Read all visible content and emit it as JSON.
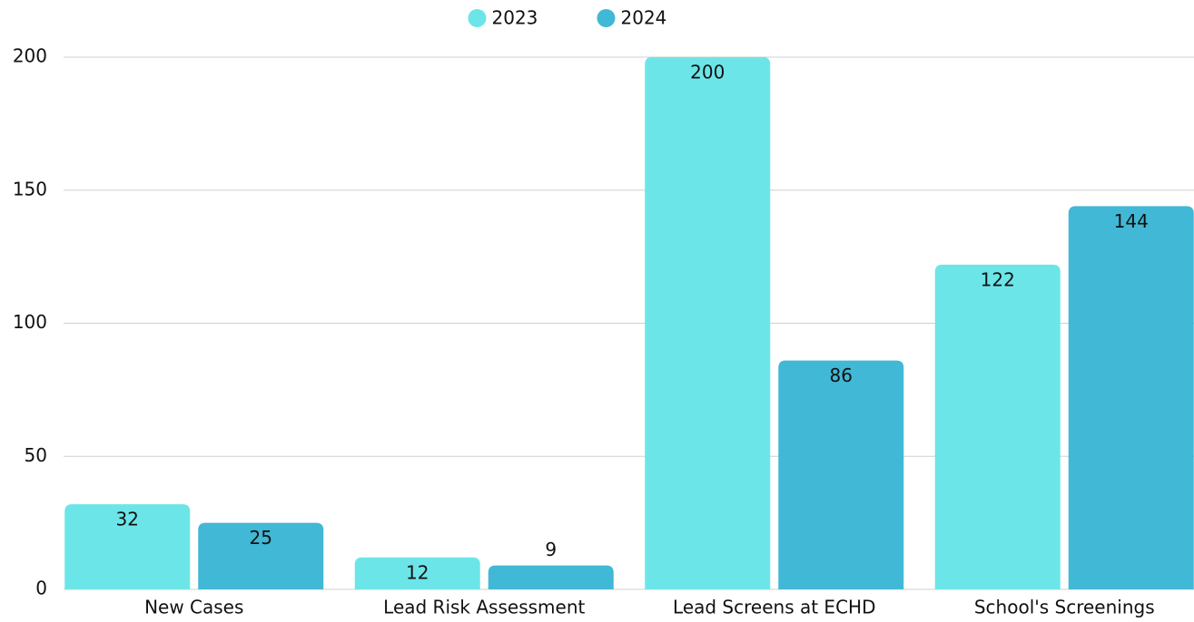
{
  "chart_data": {
    "type": "bar",
    "categories": [
      "New Cases",
      "Lead Risk Assessment",
      "Lead Screens at ECHD",
      "School's Screenings"
    ],
    "series": [
      {
        "name": "2023",
        "color": "#6ce5e8",
        "values": [
          32,
          12,
          200,
          122
        ]
      },
      {
        "name": "2024",
        "color": "#41b8d5",
        "values": [
          25,
          9,
          86,
          144
        ]
      }
    ],
    "ylim": [
      0,
      200
    ],
    "yticks": [
      0,
      50,
      100,
      150,
      200
    ],
    "grid": true,
    "legend": "top"
  }
}
